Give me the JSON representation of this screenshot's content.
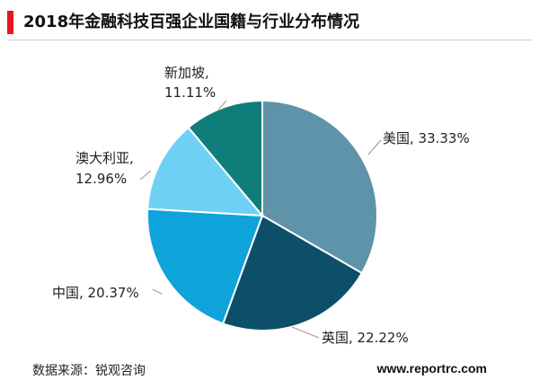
{
  "title": "2018年金融科技百强企业国籍与行业分布情况",
  "source_label": "数据来源：锐观咨询",
  "website": "www.reportrc.com",
  "chart_data": {
    "type": "pie",
    "slices": [
      {
        "name": "美国",
        "value": 33.33,
        "label": "美国, 33.33%",
        "color": "#5e93a9"
      },
      {
        "name": "英国",
        "value": 22.22,
        "label": "英国, 22.22%",
        "color": "#0d4f69"
      },
      {
        "name": "中国",
        "value": 20.37,
        "label": "中国, 20.37%",
        "color": "#0fa3db"
      },
      {
        "name": "澳大利亚",
        "value": 12.96,
        "label_line1": "澳大利亚,",
        "label_line2": "12.96%",
        "color": "#6fd0f6"
      },
      {
        "name": "新加坡",
        "value": 11.11,
        "label_line1": "新加坡,",
        "label_line2": "11.11%",
        "color": "#0f7e7a"
      }
    ]
  }
}
